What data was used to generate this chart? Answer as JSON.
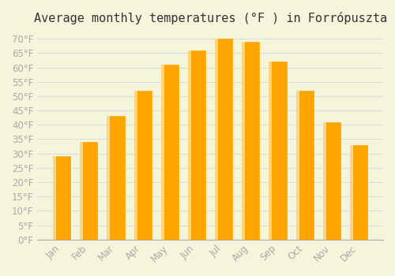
{
  "title": "Average monthly temperatures (°F ) in Forrópuszta",
  "months": [
    "Jan",
    "Feb",
    "Mar",
    "Apr",
    "May",
    "Jun",
    "Jul",
    "Aug",
    "Sep",
    "Oct",
    "Nov",
    "Dec"
  ],
  "values": [
    29,
    34,
    43,
    52,
    61,
    66,
    70,
    69,
    62,
    52,
    41,
    33
  ],
  "bar_color": "#FFA500",
  "bar_edge_color": "#FFD580",
  "background_color": "#F5F5DC",
  "grid_color": "#DDDDDD",
  "ylim": [
    0,
    72
  ],
  "yticks": [
    0,
    5,
    10,
    15,
    20,
    25,
    30,
    35,
    40,
    45,
    50,
    55,
    60,
    65,
    70
  ],
  "title_fontsize": 11,
  "tick_fontsize": 8.5,
  "text_color": "#AAAAAA"
}
